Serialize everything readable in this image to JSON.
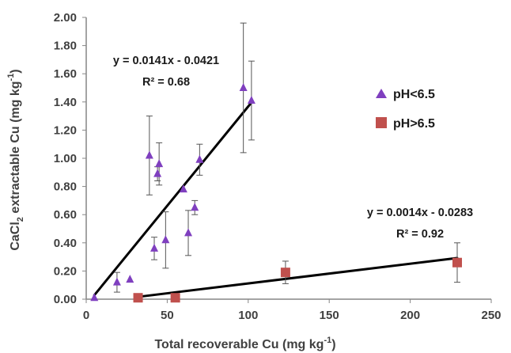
{
  "chart_data": {
    "type": "scatter",
    "xlabel": "Total recoverable Cu (mg kg",
    "xlabel_sup": "-1",
    "xlabel_end": ")",
    "ylabel_parts": [
      "CaCl",
      "2",
      " extractable Cu (mg kg",
      "-1",
      ")"
    ],
    "xlim": [
      0,
      250
    ],
    "ylim": [
      0,
      2.0
    ],
    "x_ticks": [
      "0",
      "50",
      "100",
      "150",
      "200",
      "250"
    ],
    "y_ticks": [
      "0.00",
      "0.20",
      "0.40",
      "0.60",
      "0.80",
      "1.00",
      "1.20",
      "1.40",
      "1.60",
      "1.80",
      "2.00"
    ],
    "legend_position": "right",
    "series": [
      {
        "name": "pH<6.5",
        "marker": "triangle",
        "color": "#7f3fbf",
        "points": [
          {
            "x": 5,
            "y": 0.01,
            "err": 0
          },
          {
            "x": 19,
            "y": 0.12,
            "err": 0.07
          },
          {
            "x": 27,
            "y": 0.14,
            "err": 0
          },
          {
            "x": 39,
            "y": 1.02,
            "err": 0.28
          },
          {
            "x": 42,
            "y": 0.36,
            "err": 0.08
          },
          {
            "x": 44,
            "y": 0.89,
            "err": 0.05
          },
          {
            "x": 45,
            "y": 0.96,
            "err": 0.15
          },
          {
            "x": 49,
            "y": 0.42,
            "err": 0.2
          },
          {
            "x": 60,
            "y": 0.78,
            "err": 0
          },
          {
            "x": 63,
            "y": 0.47,
            "err": 0.16
          },
          {
            "x": 67,
            "y": 0.65,
            "err": 0.05
          },
          {
            "x": 70,
            "y": 0.99,
            "err": 0.11
          },
          {
            "x": 97,
            "y": 1.5,
            "err": 0.46
          },
          {
            "x": 102,
            "y": 1.41,
            "err": 0.28
          }
        ],
        "trendline": {
          "slope": 0.0141,
          "intercept": -0.0421,
          "x_range": [
            5,
            102
          ]
        },
        "equation": "y = 0.0141x - 0.0421",
        "r2": "R² = 0.68"
      },
      {
        "name": "pH>6.5",
        "marker": "square",
        "color": "#c0504d",
        "points": [
          {
            "x": 32,
            "y": 0.01,
            "err": 0
          },
          {
            "x": 55,
            "y": 0.01,
            "err": 0
          },
          {
            "x": 123,
            "y": 0.19,
            "err": 0.08
          },
          {
            "x": 229,
            "y": 0.26,
            "err": 0.14
          }
        ],
        "trendline": {
          "slope": 0.0014,
          "intercept": -0.0283,
          "x_range": [
            32,
            229
          ]
        },
        "equation": "y = 0.0014x - 0.0283",
        "r2": "R² = 0.92"
      }
    ]
  }
}
